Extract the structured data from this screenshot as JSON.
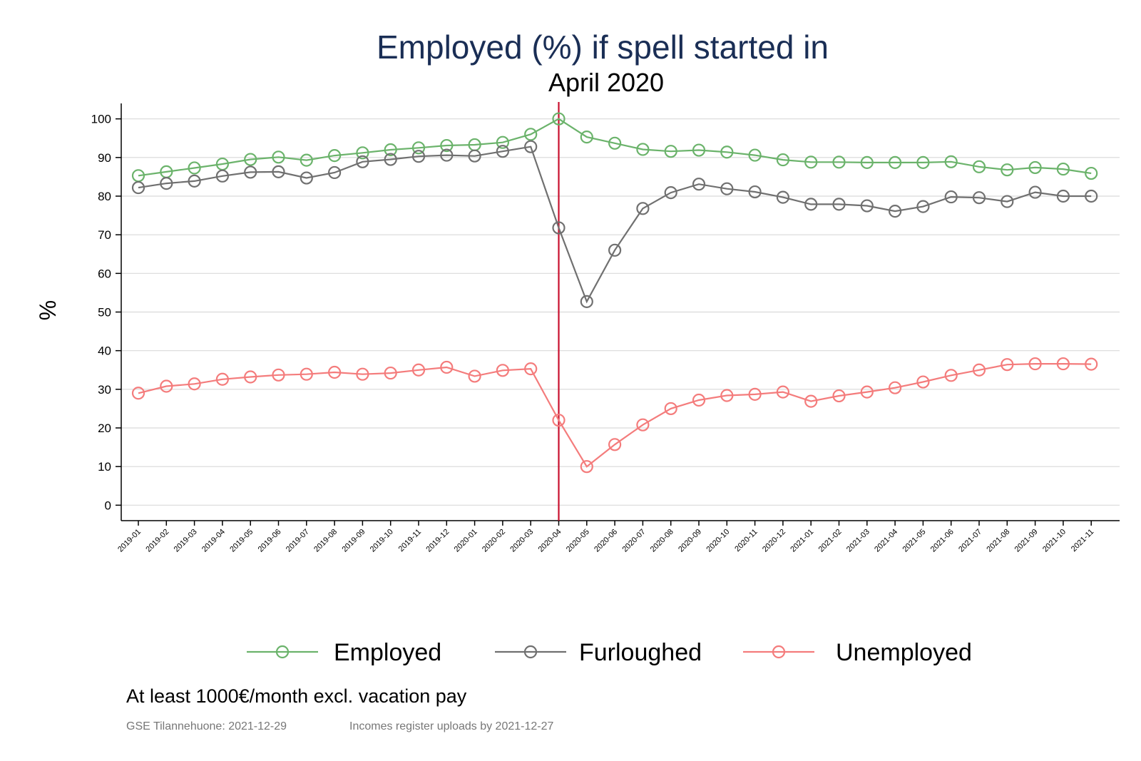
{
  "chart_data": {
    "type": "line",
    "title": "Employed (%) if spell started in",
    "subtitle": "April 2020",
    "ylabel": "%",
    "xlabel": "",
    "ylim": [
      -4,
      104
    ],
    "yticks": [
      0,
      10,
      20,
      30,
      40,
      50,
      60,
      70,
      80,
      90,
      100
    ],
    "grid": true,
    "legend_position": "bottom",
    "marker_line": {
      "at": "2020-04",
      "color": "#c8102e"
    },
    "categories": [
      "2019-01",
      "2019-02",
      "2019-03",
      "2019-04",
      "2019-05",
      "2019-06",
      "2019-07",
      "2019-08",
      "2019-09",
      "2019-10",
      "2019-11",
      "2019-12",
      "2020-01",
      "2020-02",
      "2020-03",
      "2020-04",
      "2020-05",
      "2020-06",
      "2020-07",
      "2020-08",
      "2020-09",
      "2020-10",
      "2020-11",
      "2020-12",
      "2021-01",
      "2021-02",
      "2021-03",
      "2021-04",
      "2021-05",
      "2021-06",
      "2021-07",
      "2021-08",
      "2021-09",
      "2021-10",
      "2021-11"
    ],
    "series": [
      {
        "name": "Employed",
        "color": "#6bb36b",
        "values": [
          85.3,
          86.3,
          87.3,
          88.3,
          89.5,
          90.1,
          89.3,
          90.5,
          91.2,
          92.0,
          92.5,
          93.1,
          93.3,
          93.9,
          96.0,
          100.0,
          95.3,
          93.7,
          92.1,
          91.6,
          91.9,
          91.4,
          90.6,
          89.4,
          88.8,
          88.8,
          88.7,
          88.7,
          88.7,
          88.9,
          87.6,
          86.8,
          87.4,
          87.0,
          85.9
        ]
      },
      {
        "name": "Furloughed",
        "color": "#707070",
        "values": [
          82.2,
          83.3,
          83.9,
          85.2,
          86.2,
          86.3,
          84.7,
          86.1,
          88.9,
          89.5,
          90.3,
          90.6,
          90.4,
          91.6,
          92.8,
          71.8,
          52.7,
          66.0,
          76.8,
          80.9,
          83.1,
          81.9,
          81.1,
          79.7,
          77.9,
          77.9,
          77.5,
          76.1,
          77.3,
          79.8,
          79.6,
          78.6,
          81.0,
          80.0,
          80.0
        ]
      },
      {
        "name": "Unemployed",
        "color": "#f47c7c",
        "values": [
          29.0,
          30.8,
          31.4,
          32.6,
          33.2,
          33.7,
          33.9,
          34.4,
          33.9,
          34.2,
          35.0,
          35.7,
          33.4,
          34.9,
          35.3,
          22.0,
          10.0,
          15.7,
          20.8,
          25.0,
          27.2,
          28.4,
          28.7,
          29.3,
          26.9,
          28.3,
          29.3,
          30.4,
          31.9,
          33.6,
          35.0,
          36.4,
          36.6,
          36.6,
          36.5
        ]
      }
    ]
  },
  "notes": {
    "threshold": "At least 1000€/month excl. vacation pay",
    "source": "GSE Tilannehuone: 2021-12-29",
    "uploads": "Incomes register uploads by 2021-12-27"
  }
}
